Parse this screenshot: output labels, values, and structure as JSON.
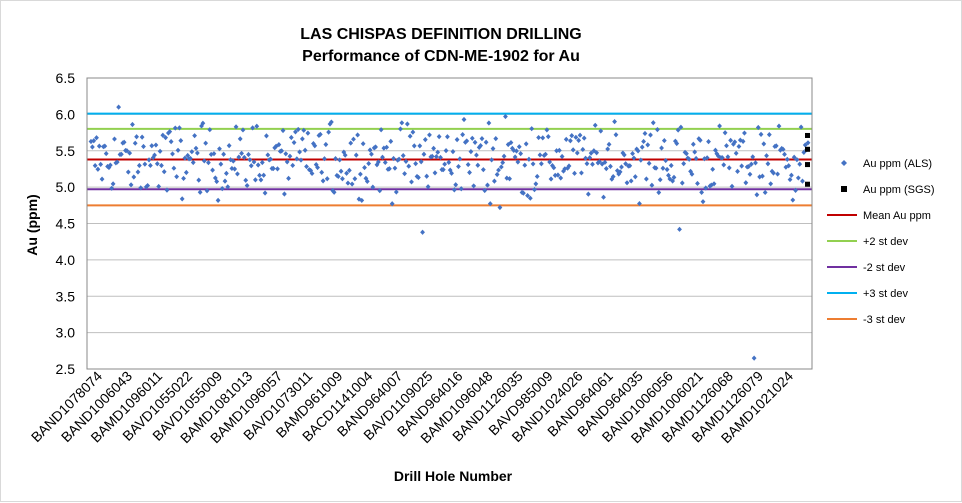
{
  "chart_data": {
    "type": "scatter",
    "title_line1": "LAS CHISPAS DEFINITION DRILLING",
    "title_line2": "Performance of CDN-ME-1902 for Au",
    "xlabel": "Drill Hole Number",
    "ylabel": "Au (ppm)",
    "ylim": [
      2.5,
      6.5
    ],
    "yticks": [
      "2.5",
      "3.0",
      "3.5",
      "4.0",
      "4.5",
      "5.0",
      "5.5",
      "6.0",
      "6.5"
    ],
    "x_categories": [
      "BAND1078074",
      "BAND1006043",
      "BAMD1096011",
      "BAVD1055022",
      "BAVD1055009",
      "BAMD1081013",
      "BAMD1096057",
      "BAVD1073011",
      "BAMD961009",
      "BACD1141004",
      "BAND964007",
      "BAVD1109025",
      "BAND964016",
      "BAMD1096048",
      "BAND1126035",
      "BAVD985009",
      "BAND1024026",
      "BAND964061",
      "BAND964035",
      "BAND1006056",
      "BAMD1006021",
      "BAMD1126068",
      "BAMD1126079",
      "BAMD1021024"
    ],
    "n_samples": 520,
    "series": [
      {
        "name": "Au ppm (ALS)",
        "kind": "points",
        "color": "#4472c4",
        "outliers": [
          {
            "index": 20,
            "value": 6.1
          },
          {
            "index": 240,
            "value": 4.38
          },
          {
            "index": 300,
            "value": 5.97
          },
          {
            "index": 270,
            "value": 5.93
          },
          {
            "index": 296,
            "value": 4.72
          },
          {
            "index": 379,
            "value": 5.9
          },
          {
            "index": 426,
            "value": 4.42
          },
          {
            "index": 443,
            "value": 4.8
          },
          {
            "index": 480,
            "value": 2.65
          }
        ]
      },
      {
        "name": "Au ppm (SGS)",
        "kind": "points",
        "color": "#000000",
        "values": [
          5.71,
          5.52,
          5.31,
          5.04
        ]
      },
      {
        "name": "Mean Au ppm",
        "kind": "line",
        "color": "#c00000",
        "value": 5.38
      },
      {
        "name": "+2 st dev",
        "kind": "line",
        "color": "#92d050",
        "value": 5.8
      },
      {
        "name": "-2 st dev",
        "kind": "line",
        "color": "#7030a0",
        "value": 4.97
      },
      {
        "name": "+3 st dev",
        "kind": "line",
        "color": "#00b0f0",
        "value": 6.01
      },
      {
        "name": "-3 st dev",
        "kind": "line",
        "color": "#ed7d31",
        "value": 4.75
      }
    ],
    "legend_position": "right"
  }
}
